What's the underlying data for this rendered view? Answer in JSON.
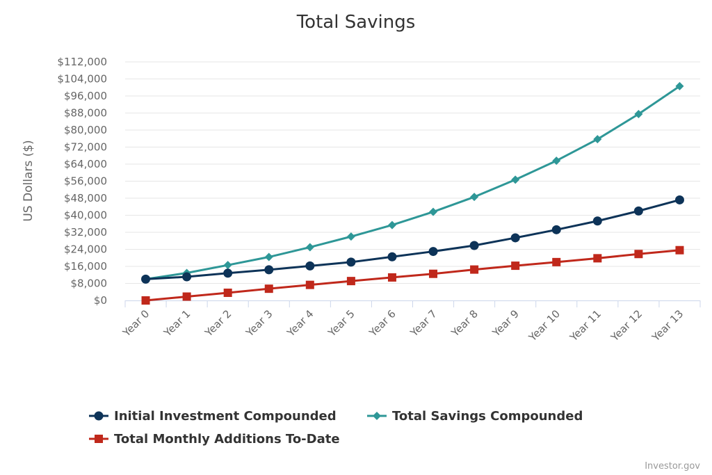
{
  "chart_data": {
    "type": "line",
    "title": "Total Savings",
    "ylabel": "US Dollars ($)",
    "xlabel": "",
    "ylim": [
      0,
      112000
    ],
    "yticks": [
      "$0",
      "$8,000",
      "$16,000",
      "$24,000",
      "$32,000",
      "$40,000",
      "$48,000",
      "$56,000",
      "$64,000",
      "$72,000",
      "$80,000",
      "$88,000",
      "$96,000",
      "$104,000",
      "$112,000"
    ],
    "ytick_values": [
      0,
      8000,
      16000,
      24000,
      32000,
      40000,
      48000,
      56000,
      64000,
      72000,
      80000,
      88000,
      96000,
      104000,
      112000
    ],
    "categories": [
      "Year 0",
      "Year 1",
      "Year 2",
      "Year 3",
      "Year 4",
      "Year 5",
      "Year 6",
      "Year 7",
      "Year 8",
      "Year 9",
      "Year 10",
      "Year 11",
      "Year 12",
      "Year 13"
    ],
    "grid": true,
    "legend_position": "bottom",
    "series": [
      {
        "name": "Initial Investment Compounded",
        "color": "#0d3358",
        "marker": "circle",
        "values": [
          10000,
          11100,
          12800,
          14400,
          16200,
          18000,
          20500,
          23000,
          25800,
          29400,
          33200,
          37300,
          42000,
          47200
        ]
      },
      {
        "name": "Total Savings Compounded",
        "color": "#2e9797",
        "marker": "diamond",
        "values": [
          10000,
          12900,
          16600,
          20400,
          25000,
          30000,
          35400,
          41600,
          48600,
          56700,
          65600,
          75700,
          87500,
          100600
        ]
      },
      {
        "name": "Total Monthly Additions To-Date",
        "color": "#c0281b",
        "marker": "square",
        "values": [
          0,
          1800,
          3600,
          5500,
          7300,
          9100,
          10800,
          12500,
          14500,
          16300,
          18000,
          19800,
          21800,
          23600
        ]
      }
    ]
  },
  "credit": "Investor.gov"
}
